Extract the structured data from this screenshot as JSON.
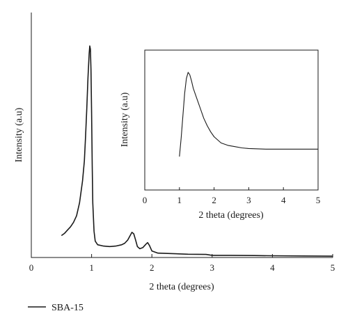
{
  "chart_data": [
    {
      "type": "line",
      "role": "main",
      "xlabel": "2 theta (degrees)",
      "ylabel": "Intensity (a.u)",
      "xlim": [
        0,
        5
      ],
      "xticks": [
        0,
        1,
        2,
        3,
        4,
        5
      ],
      "yticks": [],
      "ylim": [
        0,
        1.0
      ],
      "grid": false,
      "legend": {
        "placement": "bottom-left",
        "entries": [
          "SBA-15"
        ]
      },
      "series": [
        {
          "name": "SBA-15",
          "color": "#1a1a1a",
          "points": [
            [
              0.5,
              0.1
            ],
            [
              0.55,
              0.11
            ],
            [
              0.6,
              0.125
            ],
            [
              0.65,
              0.14
            ],
            [
              0.7,
              0.16
            ],
            [
              0.75,
              0.19
            ],
            [
              0.8,
              0.25
            ],
            [
              0.85,
              0.35
            ],
            [
              0.88,
              0.44
            ],
            [
              0.9,
              0.55
            ],
            [
              0.92,
              0.68
            ],
            [
              0.94,
              0.82
            ],
            [
              0.96,
              0.93
            ],
            [
              0.97,
              0.965
            ],
            [
              0.98,
              0.95
            ],
            [
              0.99,
              0.86
            ],
            [
              1.0,
              0.66
            ],
            [
              1.01,
              0.42
            ],
            [
              1.02,
              0.25
            ],
            [
              1.04,
              0.12
            ],
            [
              1.06,
              0.075
            ],
            [
              1.1,
              0.058
            ],
            [
              1.2,
              0.052
            ],
            [
              1.3,
              0.05
            ],
            [
              1.4,
              0.052
            ],
            [
              1.5,
              0.058
            ],
            [
              1.55,
              0.065
            ],
            [
              1.6,
              0.08
            ],
            [
              1.64,
              0.1
            ],
            [
              1.67,
              0.115
            ],
            [
              1.7,
              0.108
            ],
            [
              1.73,
              0.08
            ],
            [
              1.76,
              0.05
            ],
            [
              1.8,
              0.04
            ],
            [
              1.85,
              0.045
            ],
            [
              1.9,
              0.06
            ],
            [
              1.93,
              0.068
            ],
            [
              1.96,
              0.055
            ],
            [
              2.0,
              0.03
            ],
            [
              2.1,
              0.02
            ],
            [
              2.3,
              0.018
            ],
            [
              2.6,
              0.015
            ],
            [
              2.9,
              0.014
            ],
            [
              3.0,
              0.01
            ],
            [
              3.3,
              0.01
            ],
            [
              3.7,
              0.009
            ],
            [
              4.0,
              0.008
            ],
            [
              4.5,
              0.007
            ],
            [
              5.0,
              0.006
            ]
          ]
        }
      ]
    },
    {
      "type": "line",
      "role": "inset",
      "xlabel": "2 theta (degrees)",
      "ylabel": "Intensity (a.u)",
      "xlim": [
        0,
        5
      ],
      "xticks": [
        0,
        1,
        2,
        3,
        4,
        5
      ],
      "yticks": [],
      "ylim": [
        0,
        1.0
      ],
      "grid": false,
      "series": [
        {
          "name": "",
          "color": "#1a1a1a",
          "points": [
            [
              1.0,
              0.27
            ],
            [
              1.05,
              0.42
            ],
            [
              1.1,
              0.6
            ],
            [
              1.15,
              0.78
            ],
            [
              1.2,
              0.9
            ],
            [
              1.25,
              0.95
            ],
            [
              1.3,
              0.93
            ],
            [
              1.35,
              0.88
            ],
            [
              1.4,
              0.82
            ],
            [
              1.5,
              0.74
            ],
            [
              1.6,
              0.66
            ],
            [
              1.7,
              0.58
            ],
            [
              1.8,
              0.52
            ],
            [
              1.9,
              0.47
            ],
            [
              2.0,
              0.43
            ],
            [
              2.2,
              0.38
            ],
            [
              2.4,
              0.36
            ],
            [
              2.6,
              0.35
            ],
            [
              2.8,
              0.34
            ],
            [
              3.0,
              0.335
            ],
            [
              3.5,
              0.33
            ],
            [
              4.0,
              0.33
            ],
            [
              4.5,
              0.33
            ],
            [
              5.0,
              0.33
            ]
          ]
        }
      ]
    }
  ]
}
